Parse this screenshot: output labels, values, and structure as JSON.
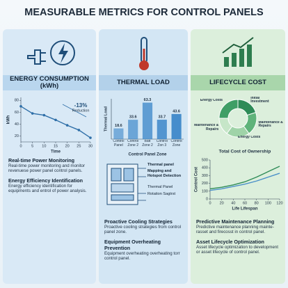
{
  "title": "MEASURABLE METRICS FOR CONTROL PANELS",
  "panels": [
    {
      "header": "ENERGY CONSUMPTION (kWh)",
      "items": [
        {
          "heading": "Real-time Power Monitoring",
          "text": "Real-time power monitoring and monitor revenuese power panel control panels."
        },
        {
          "heading": "Energy Efficiency Identification",
          "text": "Energy efficiency identification for equipments and entrol of power analysis."
        }
      ]
    },
    {
      "header": "THERMAL LOAD",
      "diagram": [
        "Thermal panel",
        "Mapping and Hotspot Detection",
        "Thermal Panel",
        "Rotation Sagtrst"
      ],
      "items": [
        {
          "heading": "Proactive Cooling Strategies",
          "text": "Proactive cooling strategies from control panel zone."
        },
        {
          "heading": "Equipment Overheating Prevention",
          "text": "Equipment overheating overheating torr control panel."
        }
      ]
    },
    {
      "header": "LIFECYCLE COST",
      "items": [
        {
          "heading": "Predictive Maintenance Planning",
          "text": "Predictive maintenance planning mainte-rasset and firecosst in control panel."
        },
        {
          "heading": "Asset Lifecycle Optimization",
          "text": "Asset lifecycle optimization to development or asset lifecycle of control panel."
        }
      ]
    }
  ],
  "chart_data": [
    {
      "type": "line",
      "x": [
        0,
        5,
        10,
        15,
        20,
        25,
        30
      ],
      "values": [
        70,
        58,
        55,
        47,
        38,
        30,
        17
      ],
      "color": "#2f6fa8",
      "markers": true,
      "xlim": [
        0,
        30
      ],
      "xticks": [
        0,
        5,
        10,
        15,
        20,
        25,
        30
      ],
      "ylim": [
        10,
        85
      ],
      "yticks": [
        20,
        40,
        60,
        80
      ],
      "y_label": "kWh",
      "x_label": "Time",
      "annotations": [
        "-13%",
        "Reduction"
      ]
    },
    {
      "type": "bar",
      "categories": [
        "Control Panel",
        "Control Zone 2",
        "Batt Zone 2",
        "Control Zon 3",
        "Control Zone"
      ],
      "values": [
        18.6,
        33.6,
        63.3,
        33.7,
        43.6
      ],
      "color": "#3a86c8",
      "ylim": [
        0,
        70
      ],
      "y_label": "Thermal Load",
      "x_label": "Control Panel Zone"
    },
    {
      "type": "pie",
      "donut": true,
      "categories": [
        "Initial Investment",
        "Maintenance & Repairs",
        "Energy Costs",
        "Maintenance & Repairs",
        "Energy Costs"
      ],
      "values": [
        20,
        20,
        20,
        15,
        25
      ],
      "colors": [
        "#2e8b57",
        "#5fb37a",
        "#9fd3a8",
        "#c6e6c8",
        "#3f9e66"
      ]
    },
    {
      "type": "line",
      "title": "Total Cost of Ownership",
      "x": [
        0,
        20,
        40,
        60,
        80,
        100,
        120
      ],
      "series": [
        {
          "color": "#2e8b57",
          "values": [
            130,
            150,
            180,
            220,
            280,
            350,
            420
          ]
        },
        {
          "color": "#4a90c8",
          "values": [
            110,
            130,
            160,
            190,
            230,
            280,
            330
          ]
        }
      ],
      "xlim": [
        0,
        120
      ],
      "xticks": [
        0,
        20,
        40,
        60,
        80,
        100,
        120
      ],
      "ylim": [
        0,
        500
      ],
      "yticks": [
        0,
        100,
        200,
        300,
        400,
        500
      ],
      "y_label": "Control Cost",
      "x_label": "Life Lifespan"
    }
  ]
}
